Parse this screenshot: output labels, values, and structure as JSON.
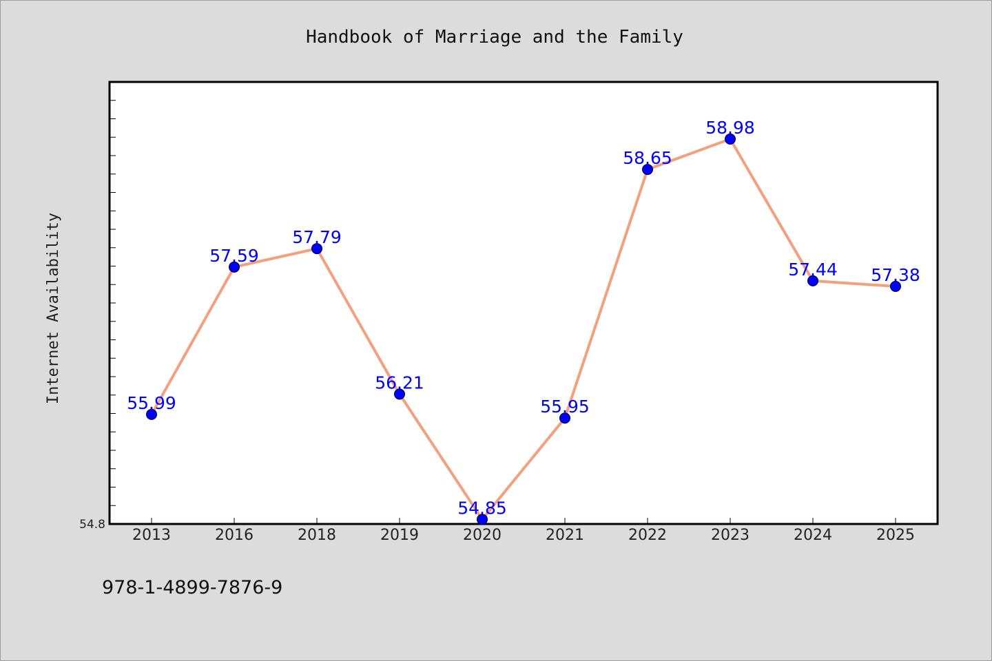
{
  "chart_data": {
    "type": "line",
    "title": "Handbook of Marriage and the Family",
    "xlabel": "",
    "ylabel": "Internet Availability",
    "categories": [
      "2013",
      "2016",
      "2018",
      "2019",
      "2020",
      "2021",
      "2022",
      "2023",
      "2024",
      "2025"
    ],
    "series": [
      {
        "values": [
          55.99,
          57.59,
          57.79,
          56.21,
          54.85,
          55.95,
          58.65,
          58.98,
          57.44,
          57.38
        ],
        "line_color": "#f4a07e",
        "marker_color": "#0000ff"
      }
    ],
    "data_labels": [
      "55.99",
      "57.59",
      "57.79",
      "56.21",
      "54.85",
      "55.95",
      "58.65",
      "58.98",
      "57.44",
      "57.38"
    ],
    "ylim": [
      54.8,
      59.6
    ],
    "ytick_labels": [
      "54.8"
    ],
    "grid": false,
    "background": "#dcdcdc",
    "plot_background": "#ffffff"
  },
  "footer": {
    "isbn": "978-1-4899-7876-9"
  }
}
